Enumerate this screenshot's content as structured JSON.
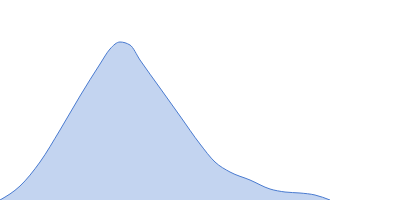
{
  "chart_data": {
    "type": "area",
    "x": [
      0,
      20,
      40,
      60,
      80,
      100,
      110,
      120,
      130,
      140,
      160,
      180,
      200,
      215,
      230,
      250,
      270,
      285,
      300,
      315,
      330
    ],
    "values": [
      0,
      14,
      38,
      70,
      104,
      136,
      151,
      158,
      155,
      140,
      112,
      84,
      56,
      38,
      28,
      20,
      11,
      8,
      7,
      5,
      0
    ],
    "color": "#4a7bd0",
    "tick_labels": false
  }
}
